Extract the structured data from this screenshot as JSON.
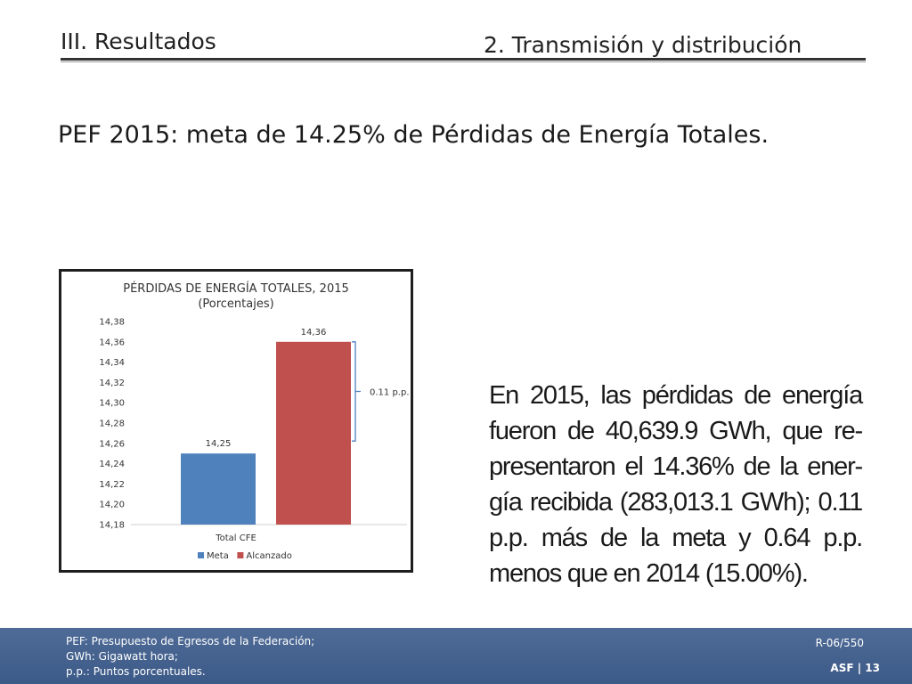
{
  "header": {
    "section": "III. Resultados",
    "subsection": "2. Transmisión y distribución"
  },
  "headline": "PEF 2015: meta de 14.25% de Pérdidas de Energía Totales.",
  "chart_data": {
    "type": "bar",
    "title": "PÉRDIDAS DE ENERGÍA TOTALES, 2015",
    "subtitle": "(Porcentajes)",
    "categories": [
      "Total CFE"
    ],
    "series": [
      {
        "name": "Meta",
        "values": [
          14.25
        ],
        "label": "14,25",
        "color": "#4f81bd"
      },
      {
        "name": "Alcanzado",
        "values": [
          14.36
        ],
        "label": "14,36",
        "color": "#c0504d"
      }
    ],
    "ylim": [
      14.18,
      14.38
    ],
    "yticks": [
      "14,18",
      "14,20",
      "14,22",
      "14,24",
      "14,26",
      "14,28",
      "14,30",
      "14,32",
      "14,34",
      "14,36",
      "14,38"
    ],
    "annotation": "0.11 p.p.",
    "legend_position": "bottom",
    "grid": false
  },
  "body_lines": [
    "En 2015, las pérdidas de energía",
    "fueron de 40,639.9 GWh, que re-",
    "presentaron el 14.36% de la ener-",
    "gía recibida (283,013.1 GWh); 0.11",
    "p.p. más de la meta y 0.64 p.p.",
    "menos que en 2014 (15.00%)."
  ],
  "footer": {
    "notes": [
      "PEF: Presupuesto de Egresos de la Federación;",
      "GWh: Gigawatt hora;",
      "p.p.: Puntos porcentuales."
    ],
    "code": "R-06/550",
    "page": "ASF |  13"
  }
}
